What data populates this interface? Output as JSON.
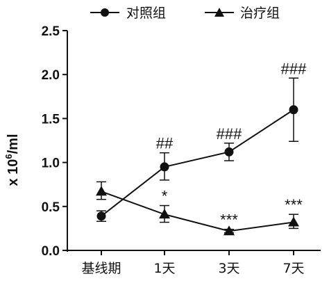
{
  "chart_data": {
    "type": "line",
    "categories": [
      "基线期",
      "1天",
      "3天",
      "7天"
    ],
    "ylabel": "x 10^6/ml",
    "ylabel_parts": {
      "prefix": "x 10",
      "sup": "6",
      "suffix": "/ml"
    },
    "ylim": [
      0.0,
      2.5
    ],
    "yticks": [
      "0.0",
      "0.5",
      "1.0",
      "1.5",
      "2.0",
      "2.5"
    ],
    "yticks_values": [
      0.0,
      0.5,
      1.0,
      1.5,
      2.0,
      2.5
    ],
    "grid": false,
    "legend": "top",
    "series": [
      {
        "name": "对照组",
        "marker": "circle",
        "values": [
          0.39,
          0.95,
          1.12,
          1.6
        ],
        "err_low": [
          0.33,
          0.8,
          1.02,
          1.24
        ],
        "err_high": [
          0.45,
          1.11,
          1.22,
          1.96
        ],
        "annotations": [
          "",
          "##",
          "###",
          "###"
        ]
      },
      {
        "name": "治疗组",
        "marker": "triangle",
        "values": [
          0.67,
          0.41,
          0.22,
          0.32
        ],
        "err_low": [
          0.58,
          0.32,
          0.2,
          0.25
        ],
        "err_high": [
          0.78,
          0.51,
          0.24,
          0.41
        ],
        "annotations": [
          "",
          "*",
          "***",
          "***"
        ]
      }
    ]
  }
}
